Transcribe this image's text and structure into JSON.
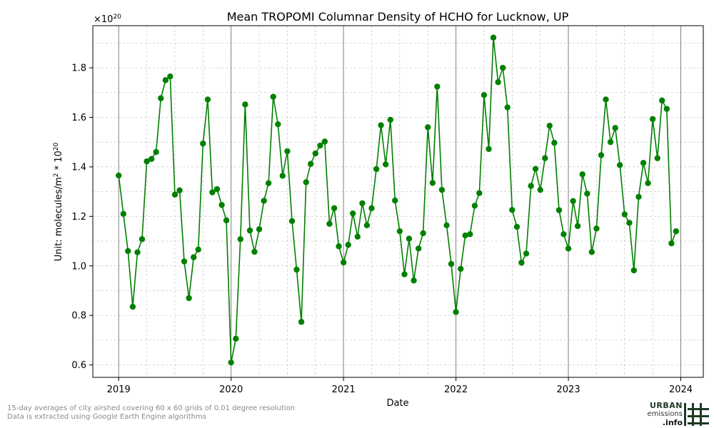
{
  "chart_data": {
    "type": "line",
    "title": "Mean TROPOMI Columnar Density of HCHO for Lucknow, UP",
    "xlabel": "Date",
    "ylabel_prefix": "Unit: molecules/m",
    "ylabel_sup1": "2",
    "ylabel_mid": " * 10",
    "ylabel_sup2": "20",
    "offset_text_base": "×10",
    "offset_text_exp": "20",
    "x_ticks": [
      "2019",
      "2020",
      "2021",
      "2022",
      "2023",
      "2024"
    ],
    "y_ticks": [
      "0.6",
      "0.8",
      "1.0",
      "1.2",
      "1.4",
      "1.6",
      "1.8"
    ],
    "ylim": [
      0.55,
      1.97
    ],
    "xlim": [
      2018.77,
      2024.2
    ],
    "series_color": "#008000",
    "marker": "circle",
    "grid": true,
    "series": [
      {
        "x": [
          2019.0,
          2019.042,
          2019.083,
          2019.125,
          2019.167,
          2019.208,
          2019.25,
          2019.292,
          2019.333,
          2019.375,
          2019.417,
          2019.458,
          2019.5,
          2019.542,
          2019.583,
          2019.625,
          2019.667,
          2019.708,
          2019.75,
          2019.792,
          2019.833,
          2019.875,
          2019.917,
          2019.958,
          2020.0,
          2020.042,
          2020.083,
          2020.125,
          2020.167,
          2020.208,
          2020.25,
          2020.292,
          2020.333,
          2020.375,
          2020.417,
          2020.458,
          2020.5,
          2020.542,
          2020.583,
          2020.625,
          2020.667,
          2020.708,
          2020.75,
          2020.792,
          2020.833,
          2020.875,
          2020.917,
          2020.958,
          2021.0,
          2021.042,
          2021.083,
          2021.125,
          2021.167,
          2021.208,
          2021.25,
          2021.292,
          2021.333,
          2021.375,
          2021.417,
          2021.458,
          2021.5,
          2021.542,
          2021.583,
          2021.625,
          2021.667,
          2021.708,
          2021.75,
          2021.792,
          2021.833,
          2021.875,
          2021.917,
          2021.958,
          2022.0,
          2022.042,
          2022.083,
          2022.125,
          2022.167,
          2022.208,
          2022.25,
          2022.292,
          2022.333,
          2022.375,
          2022.417,
          2022.458,
          2022.5,
          2022.542,
          2022.583,
          2022.625,
          2022.667,
          2022.708,
          2022.75,
          2022.792,
          2022.833,
          2022.875,
          2022.917,
          2022.958,
          2023.0,
          2023.042,
          2023.083,
          2023.125,
          2023.167,
          2023.208,
          2023.25,
          2023.292,
          2023.333,
          2023.375,
          2023.417,
          2023.458,
          2023.5,
          2023.542,
          2023.583,
          2023.625,
          2023.667,
          2023.708,
          2023.75,
          2023.792,
          2023.833,
          2023.875,
          2023.917,
          2023.958
        ],
        "values": [
          1.365,
          1.21,
          1.06,
          0.835,
          1.055,
          1.108,
          1.422,
          1.432,
          1.46,
          1.677,
          1.75,
          1.765,
          1.288,
          1.305,
          1.018,
          0.87,
          1.035,
          1.066,
          1.494,
          1.672,
          1.297,
          1.31,
          1.246,
          1.184,
          0.61,
          0.706,
          1.108,
          1.652,
          1.143,
          1.057,
          1.148,
          1.263,
          1.334,
          1.683,
          1.572,
          1.364,
          1.463,
          1.181,
          0.985,
          0.774,
          1.338,
          1.412,
          1.454,
          1.486,
          1.502,
          1.17,
          1.233,
          1.079,
          1.014,
          1.085,
          1.212,
          1.118,
          1.253,
          1.164,
          1.233,
          1.391,
          1.568,
          1.41,
          1.59,
          1.264,
          1.14,
          0.966,
          1.11,
          0.941,
          1.07,
          1.132,
          1.56,
          1.335,
          1.724,
          1.307,
          1.164,
          1.008,
          0.814,
          0.988,
          1.123,
          1.128,
          1.243,
          1.294,
          1.69,
          1.472,
          1.922,
          1.742,
          1.8,
          1.64,
          1.226,
          1.158,
          1.013,
          1.05,
          1.323,
          1.392,
          1.307,
          1.435,
          1.566,
          1.497,
          1.225,
          1.128,
          1.07,
          1.262,
          1.161,
          1.37,
          1.292,
          1.056,
          1.151,
          1.447,
          1.672,
          1.5,
          1.557,
          1.407,
          1.208,
          1.174,
          0.982,
          1.279,
          1.416,
          1.334,
          1.593,
          1.435,
          1.668,
          1.634,
          1.091,
          1.14
        ]
      }
    ]
  },
  "footer": {
    "line1": "15-day averages of city airshed covering 60 x 60 grids of 0.01 degree resolution",
    "line2": "Data is extracted using Google Earth Engine algorithms"
  },
  "logo": {
    "line1": "URBAN",
    "line2": "emissions",
    "line3": ".info"
  }
}
